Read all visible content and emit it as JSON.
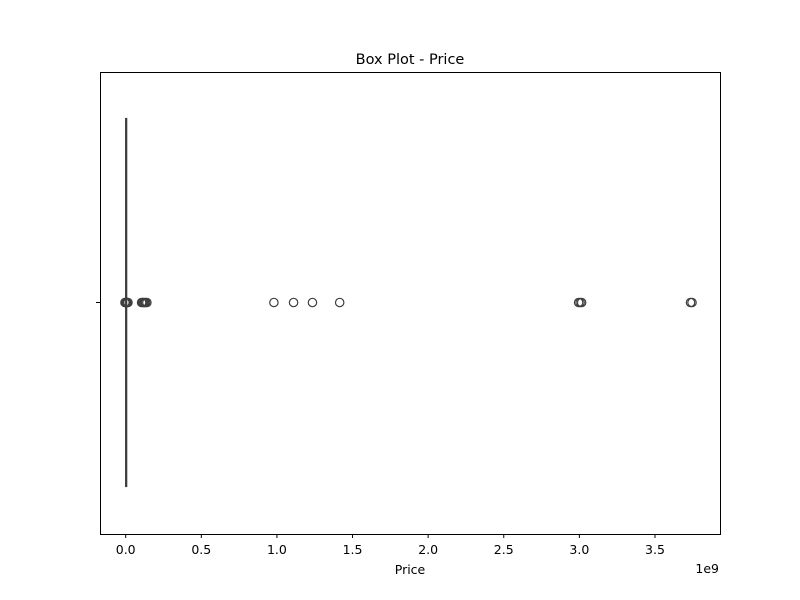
{
  "chart_data": {
    "type": "box",
    "title": "Box Plot - Price",
    "xlabel": "Price",
    "ylabel": "",
    "axis_offset_text": "1e9",
    "xlim": [
      -0.17,
      3.93
    ],
    "x_scale_factor": 1000000000,
    "xticks": [
      0.0,
      0.5,
      1.0,
      1.5,
      2.0,
      2.5,
      3.0,
      3.5
    ],
    "xtick_labels": [
      "0.0",
      "0.5",
      "1.0",
      "1.5",
      "2.0",
      "2.5",
      "3.0",
      "3.5"
    ],
    "grid": false,
    "orientation": "horizontal",
    "series": [
      {
        "box": {
          "q1": 0.0,
          "median": 0.0,
          "q3": 0.0,
          "whisker_low": 0.0,
          "whisker_high": 0.0
        },
        "outliers": [
          -0.005,
          -0.003,
          0.0,
          0.003,
          0.006,
          0.009,
          0.012,
          0.015,
          0.105,
          0.112,
          0.118,
          0.125,
          0.132,
          0.14,
          0.98,
          1.11,
          1.235,
          1.415,
          2.995,
          3.005,
          3.015,
          3.735,
          3.745
        ]
      }
    ],
    "colors": {
      "box_edge": "#3f3f3f",
      "outlier_edge": "#3f3f3f",
      "axis": "#000000",
      "background": "#ffffff"
    }
  }
}
